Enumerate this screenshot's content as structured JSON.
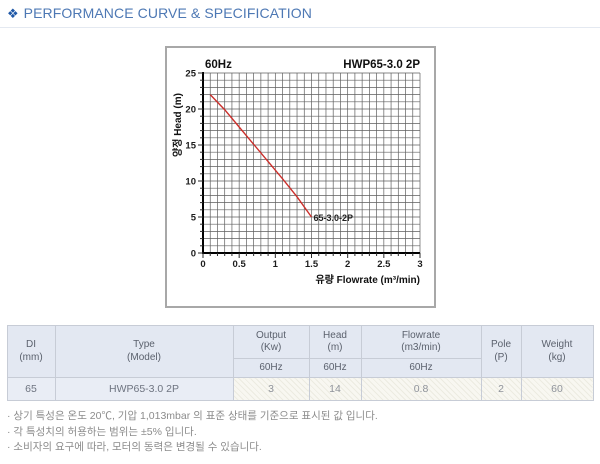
{
  "header": {
    "icon_glyph": "❖",
    "title": "PERFORMANCE CURVE & SPECIFICATION",
    "accent_color": "#4d78b4"
  },
  "chart_data": {
    "type": "line",
    "title": "HWP65-3.0 2P",
    "freq": "60Hz",
    "xlabel": "유량 Flowrate (m³/min)",
    "ylabel": "양정 Head (m)",
    "xlim": [
      0,
      3
    ],
    "ylim": [
      0,
      25
    ],
    "xticks": [
      0,
      0.5,
      1,
      1.5,
      2,
      2.5,
      3
    ],
    "yticks": [
      0,
      5,
      10,
      15,
      20,
      25
    ],
    "minor_x": 0.1,
    "minor_y": 1,
    "grid": true,
    "legend_position": "on-curve",
    "series": [
      {
        "name": "65-3.0-2P",
        "x": [
          0.1,
          0.3,
          0.5,
          0.7,
          0.9,
          1.1,
          1.3,
          1.5
        ],
        "y": [
          22,
          19.9,
          17.5,
          15.1,
          12.7,
          10.3,
          7.8,
          5
        ],
        "color": "#cb2f2b"
      }
    ]
  },
  "table": {
    "col_di": "DI\n(mm)",
    "col_type": "Type\n(Model)",
    "col_output": "Output\n(Kw)",
    "col_head": "Head\n(m)",
    "col_flowrate": "Flowrate\n(m3/min)",
    "col_pole": "Pole\n(P)",
    "col_weight": "Weight\n(kg)",
    "freq_sub": [
      "60Hz",
      "60Hz",
      "60Hz"
    ],
    "row": {
      "di": "65",
      "type": "HWP65-3.0 2P",
      "output": "3",
      "head": "14",
      "flowrate": "0.8",
      "pole": "2",
      "weight": "60"
    },
    "header_bg": "#e3e8f2",
    "row_bg": "#e9edf5"
  },
  "notes": [
    "· 상기 특성은 온도 20℃, 기압 1,013mbar 의 표준 상태를 기준으로 표시된 값 입니다.",
    "· 각 특성치의 허용하는 범위는 ±5% 입니다.",
    "· 소비자의 요구에 따라, 모터의 동력은 변경될 수 있습니다."
  ]
}
